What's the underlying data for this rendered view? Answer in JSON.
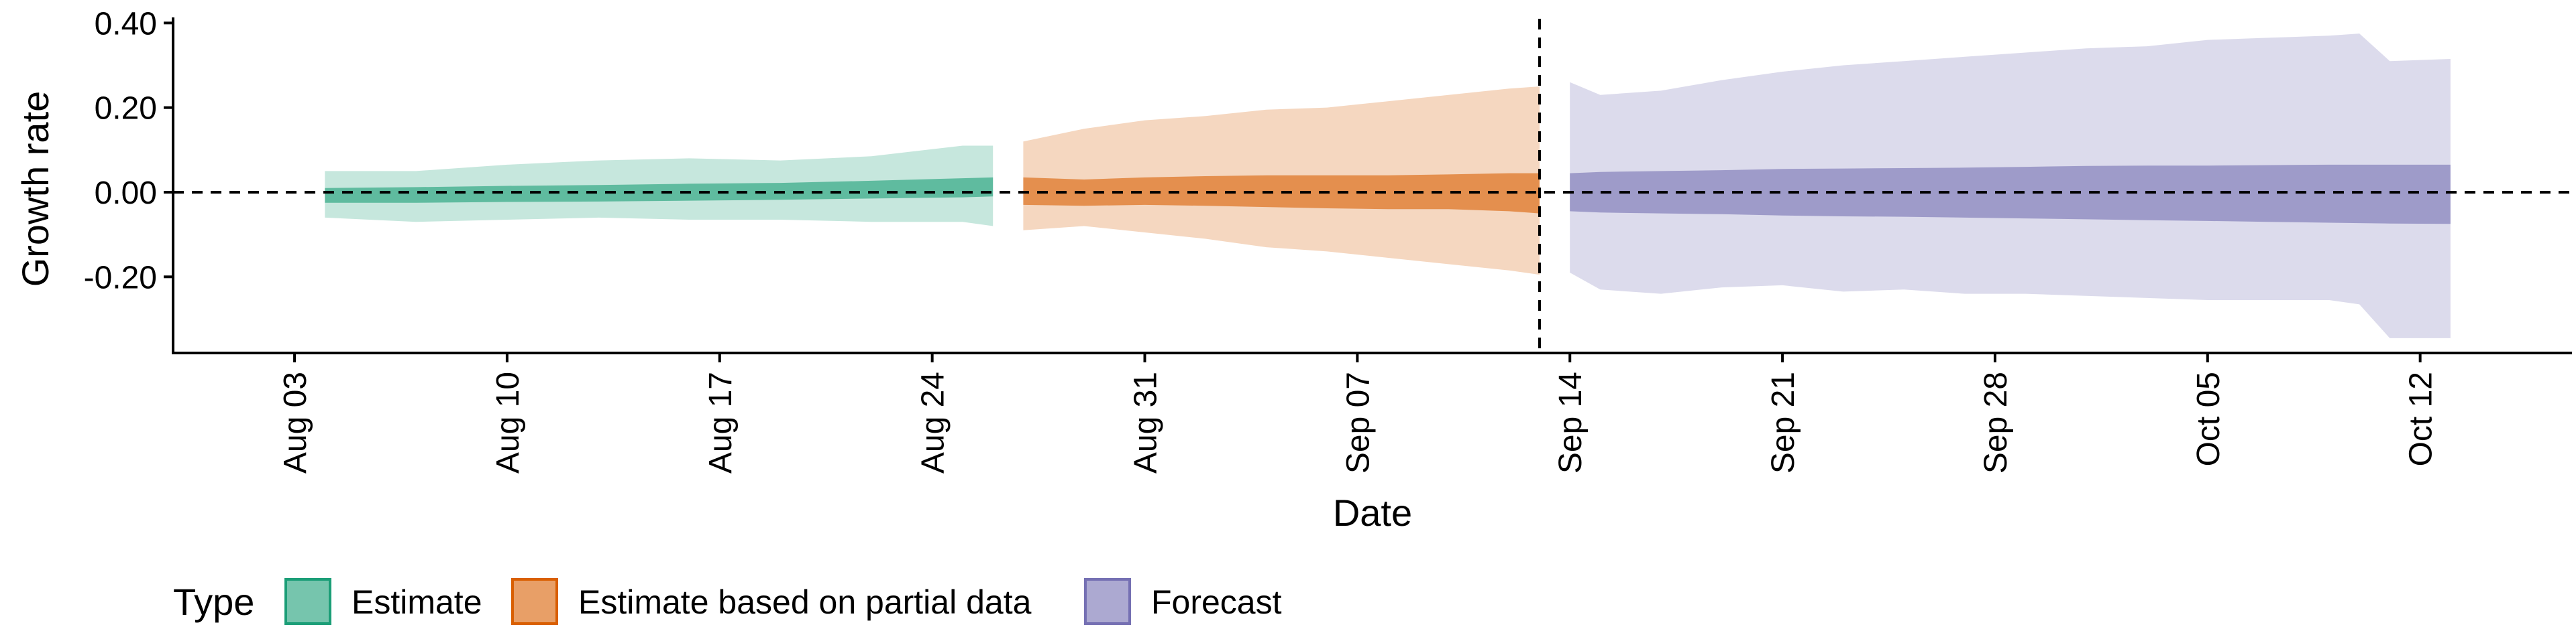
{
  "chart_data": {
    "type": "area",
    "xlabel": "Date",
    "ylabel": "Growth rate",
    "ylim": [
      -0.38,
      0.41
    ],
    "xlim": [
      "2020-07-30",
      "2020-10-17"
    ],
    "y_ticks": [
      {
        "value": -0.2,
        "label": "-0.20"
      },
      {
        "value": 0.0,
        "label": "0.00"
      },
      {
        "value": 0.2,
        "label": "0.20"
      },
      {
        "value": 0.4,
        "label": "0.40"
      }
    ],
    "x_ticks": [
      {
        "date": "2020-08-03",
        "label": "Aug 03"
      },
      {
        "date": "2020-08-10",
        "label": "Aug 10"
      },
      {
        "date": "2020-08-17",
        "label": "Aug 17"
      },
      {
        "date": "2020-08-24",
        "label": "Aug 24"
      },
      {
        "date": "2020-08-31",
        "label": "Aug 31"
      },
      {
        "date": "2020-09-07",
        "label": "Sep 07"
      },
      {
        "date": "2020-09-14",
        "label": "Sep 14"
      },
      {
        "date": "2020-09-21",
        "label": "Sep 21"
      },
      {
        "date": "2020-09-28",
        "label": "Sep 28"
      },
      {
        "date": "2020-10-05",
        "label": "Oct 05"
      },
      {
        "date": "2020-10-12",
        "label": "Oct 12"
      }
    ],
    "reference_line_y": 0,
    "vertical_line_date": "2020-09-13",
    "legend": {
      "title": "Type",
      "position": "bottom-left",
      "items": [
        {
          "label": "Estimate",
          "color": "#1b9e77"
        },
        {
          "label": "Estimate based on partial data",
          "color": "#d95f02"
        },
        {
          "label": "Forecast",
          "color": "#7570b3"
        }
      ]
    },
    "series": [
      {
        "name": "Estimate",
        "color": "#1b9e77",
        "dates": [
          "2020-08-04",
          "2020-08-07",
          "2020-08-10",
          "2020-08-13",
          "2020-08-16",
          "2020-08-19",
          "2020-08-22",
          "2020-08-25",
          "2020-08-26"
        ],
        "outer_upper": [
          0.05,
          0.05,
          0.065,
          0.075,
          0.08,
          0.075,
          0.085,
          0.11,
          0.11
        ],
        "outer_lower": [
          -0.06,
          -0.07,
          -0.065,
          -0.06,
          -0.065,
          -0.065,
          -0.07,
          -0.07,
          -0.08
        ],
        "inner_upper": [
          0.01,
          0.012,
          0.015,
          0.017,
          0.02,
          0.022,
          0.027,
          0.033,
          0.035
        ],
        "inner_lower": [
          -0.025,
          -0.025,
          -0.023,
          -0.022,
          -0.02,
          -0.018,
          -0.015,
          -0.012,
          -0.01
        ]
      },
      {
        "name": "Estimate based on partial data",
        "color": "#d95f02",
        "dates": [
          "2020-08-27",
          "2020-08-29",
          "2020-08-31",
          "2020-09-02",
          "2020-09-04",
          "2020-09-06",
          "2020-09-08",
          "2020-09-10",
          "2020-09-12",
          "2020-09-13"
        ],
        "outer_upper": [
          0.12,
          0.15,
          0.17,
          0.18,
          0.195,
          0.2,
          0.215,
          0.23,
          0.245,
          0.25
        ],
        "outer_lower": [
          -0.09,
          -0.08,
          -0.095,
          -0.11,
          -0.13,
          -0.14,
          -0.155,
          -0.17,
          -0.185,
          -0.195
        ],
        "inner_upper": [
          0.035,
          0.03,
          0.035,
          0.038,
          0.04,
          0.04,
          0.04,
          0.042,
          0.045,
          0.045
        ],
        "inner_lower": [
          -0.03,
          -0.032,
          -0.03,
          -0.032,
          -0.035,
          -0.038,
          -0.04,
          -0.04,
          -0.045,
          -0.05
        ]
      },
      {
        "name": "Forecast",
        "color": "#7570b3",
        "dates": [
          "2020-09-14",
          "2020-09-15",
          "2020-09-17",
          "2020-09-19",
          "2020-09-21",
          "2020-09-23",
          "2020-09-25",
          "2020-09-27",
          "2020-09-29",
          "2020-10-01",
          "2020-10-03",
          "2020-10-05",
          "2020-10-07",
          "2020-10-09",
          "2020-10-10",
          "2020-10-11",
          "2020-10-13"
        ],
        "outer_upper": [
          0.26,
          0.23,
          0.24,
          0.265,
          0.285,
          0.3,
          0.31,
          0.32,
          0.33,
          0.34,
          0.345,
          0.36,
          0.365,
          0.37,
          0.375,
          0.31,
          0.315
        ],
        "outer_lower": [
          -0.19,
          -0.23,
          -0.24,
          -0.225,
          -0.22,
          -0.235,
          -0.23,
          -0.24,
          -0.24,
          -0.245,
          -0.25,
          -0.255,
          -0.255,
          -0.255,
          -0.265,
          -0.345,
          -0.345
        ],
        "inner_upper": [
          0.045,
          0.048,
          0.05,
          0.052,
          0.055,
          0.056,
          0.057,
          0.058,
          0.06,
          0.062,
          0.063,
          0.063,
          0.064,
          0.065,
          0.065,
          0.065,
          0.065
        ],
        "inner_lower": [
          -0.045,
          -0.048,
          -0.05,
          -0.052,
          -0.055,
          -0.057,
          -0.058,
          -0.06,
          -0.062,
          -0.064,
          -0.066,
          -0.068,
          -0.07,
          -0.072,
          -0.073,
          -0.074,
          -0.075
        ]
      }
    ]
  }
}
